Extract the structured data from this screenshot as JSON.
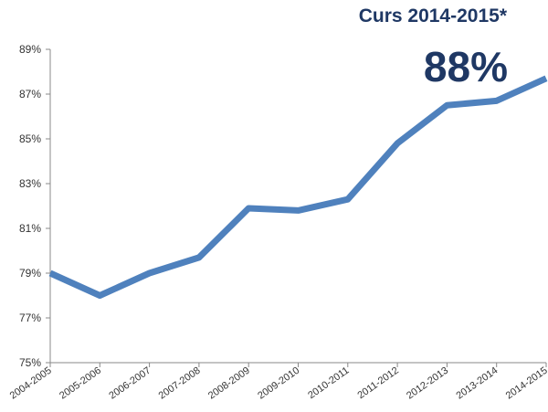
{
  "chart_data": {
    "type": "line",
    "annotation": "Curs 2014-2015*",
    "highlight": "88%",
    "categories": [
      "2004-2005",
      "2005-2006",
      "2006-2007",
      "2007-2008",
      "2008-2009",
      "2009-2010",
      "2010-2011",
      "2011-2012",
      "2012-2013",
      "2013-2014",
      "2014-2015"
    ],
    "series": [
      {
        "color": "#4f81bd",
        "values": [
          79.0,
          78.0,
          79.0,
          79.7,
          81.9,
          81.8,
          82.3,
          84.8,
          86.5,
          86.7,
          87.7
        ]
      }
    ],
    "ylim": [
      75,
      89
    ],
    "yticks": [
      {
        "value": 75,
        "label": "75%"
      },
      {
        "value": 77,
        "label": "77%"
      },
      {
        "value": 79,
        "label": "79%"
      },
      {
        "value": 81,
        "label": "81%"
      },
      {
        "value": 83,
        "label": "83%"
      },
      {
        "value": 85,
        "label": "85%"
      },
      {
        "value": 87,
        "label": "87%"
      },
      {
        "value": 89,
        "label": "89%"
      }
    ],
    "grid": false
  }
}
